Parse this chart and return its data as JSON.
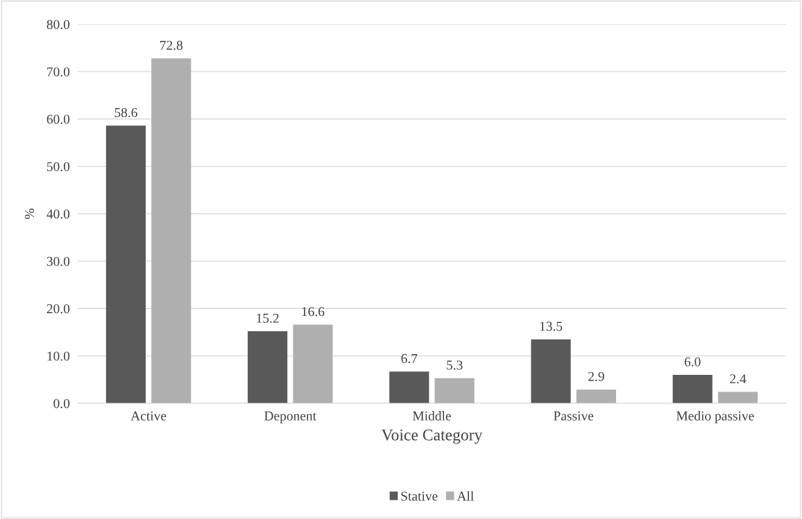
{
  "chart_data": {
    "type": "bar",
    "xlabel": "Voice Category",
    "ylabel": "%",
    "categories": [
      "Active",
      "Deponent",
      "Middle",
      "Passive",
      "Medio passive"
    ],
    "series": [
      {
        "name": "Stative",
        "color": "#595959",
        "values": [
          58.6,
          15.2,
          6.7,
          13.5,
          6.0
        ],
        "value_labels": [
          "58.6",
          "15.2",
          "6.7",
          "13.5",
          "6.0"
        ]
      },
      {
        "name": "All",
        "color": "#afafaf",
        "values": [
          72.8,
          16.6,
          5.3,
          2.9,
          2.4
        ],
        "value_labels": [
          "72.8",
          "16.6",
          "5.3",
          "2.9",
          "2.4"
        ]
      }
    ],
    "ylim": [
      0,
      80
    ],
    "yticks": [
      {
        "value": 0,
        "label": "0.0"
      },
      {
        "value": 10,
        "label": "10.0"
      },
      {
        "value": 20,
        "label": "20.0"
      },
      {
        "value": 30,
        "label": "30.0"
      },
      {
        "value": 40,
        "label": "40.0"
      },
      {
        "value": 50,
        "label": "50.0"
      },
      {
        "value": 60,
        "label": "60.0"
      },
      {
        "value": 70,
        "label": "70.0"
      },
      {
        "value": 80,
        "label": "80.0"
      }
    ],
    "grid": "y",
    "legend": "bottom"
  }
}
